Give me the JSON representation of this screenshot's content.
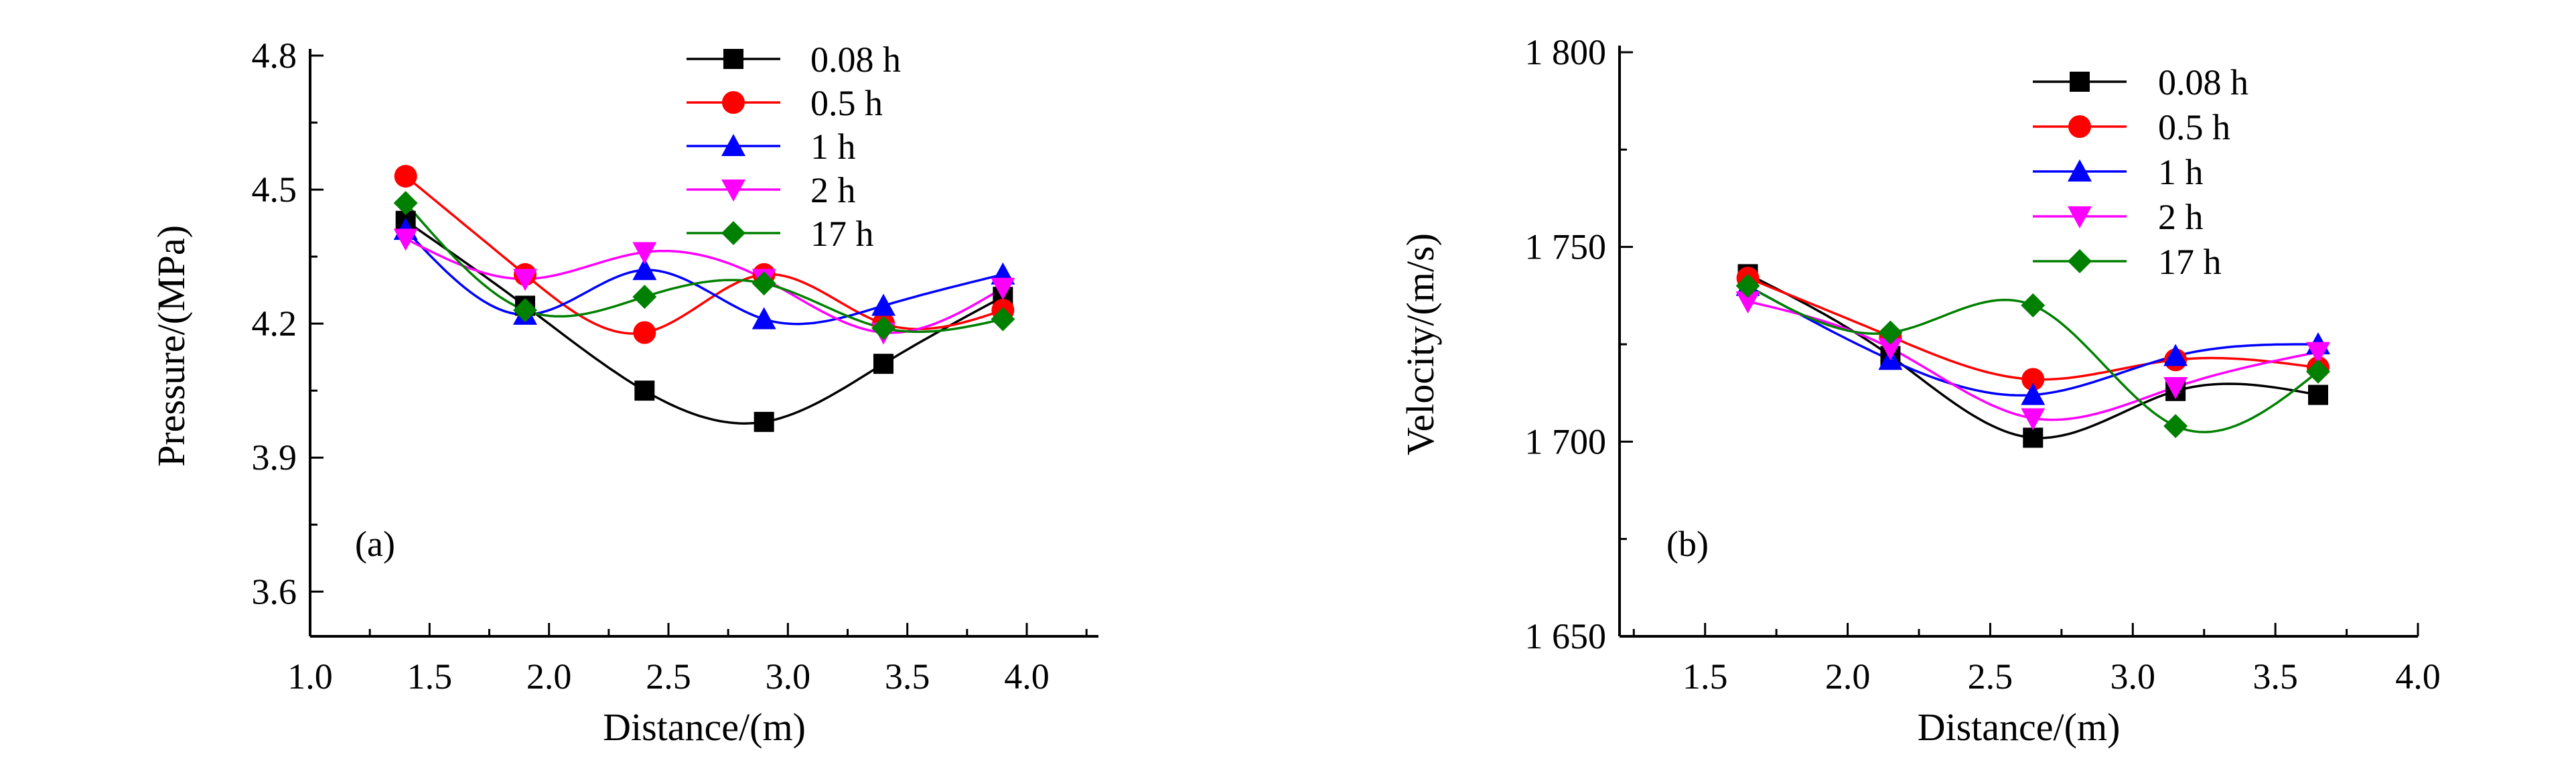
{
  "chart_data": [
    {
      "panel": "(a)",
      "type": "line",
      "xlabel": "Distance/(m)",
      "ylabel": "Pressure/(MPa)",
      "xlim": [
        1.0,
        4.3
      ],
      "ylim": [
        3.5,
        4.8
      ],
      "x_ticks": [
        "1.0",
        "1.5",
        "2.0",
        "2.5",
        "3.0",
        "3.5",
        "4.0"
      ],
      "y_ticks": [
        "3.6",
        "3.9",
        "4.2",
        "4.5",
        "4.8"
      ],
      "legend_position": "top-center",
      "x": [
        1.4,
        1.9,
        2.4,
        2.9,
        3.4,
        3.9
      ],
      "series": [
        {
          "name": "0.08 h",
          "color": "#000000",
          "marker": "square",
          "values": [
            4.43,
            4.24,
            4.05,
            3.98,
            4.11,
            4.26
          ]
        },
        {
          "name": "0.5 h",
          "color": "#ff0000",
          "marker": "circle",
          "values": [
            4.53,
            4.31,
            4.18,
            4.31,
            4.2,
            4.23
          ]
        },
        {
          "name": "1 h",
          "color": "#0000ff",
          "marker": "triangle",
          "values": [
            4.41,
            4.22,
            4.32,
            4.21,
            4.24,
            4.31
          ]
        },
        {
          "name": "2 h",
          "color": "#ff00ff",
          "marker": "triangle-down",
          "values": [
            4.39,
            4.3,
            4.36,
            4.3,
            4.18,
            4.28
          ]
        },
        {
          "name": "17 h",
          "color": "#008000",
          "marker": "diamond",
          "values": [
            4.47,
            4.23,
            4.26,
            4.29,
            4.19,
            4.21
          ]
        }
      ]
    },
    {
      "panel": "(b)",
      "type": "line",
      "xlabel": "Distance/(m)",
      "ylabel": "Velocity/(m/s)",
      "xlim": [
        1.2,
        4.0
      ],
      "ylim": [
        1650,
        1800
      ],
      "x_ticks": [
        "1.5",
        "2.0",
        "2.5",
        "3.0",
        "3.5",
        "4.0"
      ],
      "y_ticks": [
        "1 650",
        "1 700",
        "1 750",
        "1 800"
      ],
      "legend_position": "top-right",
      "x": [
        1.65,
        2.15,
        2.65,
        3.15,
        3.65
      ],
      "series": [
        {
          "name": "0.08 h",
          "color": "#000000",
          "marker": "square",
          "values": [
            1743,
            1722,
            1701,
            1713,
            1712
          ]
        },
        {
          "name": "0.5 h",
          "color": "#ff0000",
          "marker": "circle",
          "values": [
            1742,
            1727,
            1716,
            1721,
            1719
          ]
        },
        {
          "name": "1 h",
          "color": "#0000ff",
          "marker": "triangle",
          "values": [
            1740,
            1721,
            1712,
            1722,
            1725
          ]
        },
        {
          "name": "2 h",
          "color": "#ff00ff",
          "marker": "triangle-down",
          "values": [
            1736,
            1724,
            1706,
            1714,
            1723
          ]
        },
        {
          "name": "17 h",
          "color": "#008000",
          "marker": "diamond",
          "values": [
            1740,
            1728,
            1735,
            1704,
            1718
          ]
        }
      ]
    }
  ]
}
